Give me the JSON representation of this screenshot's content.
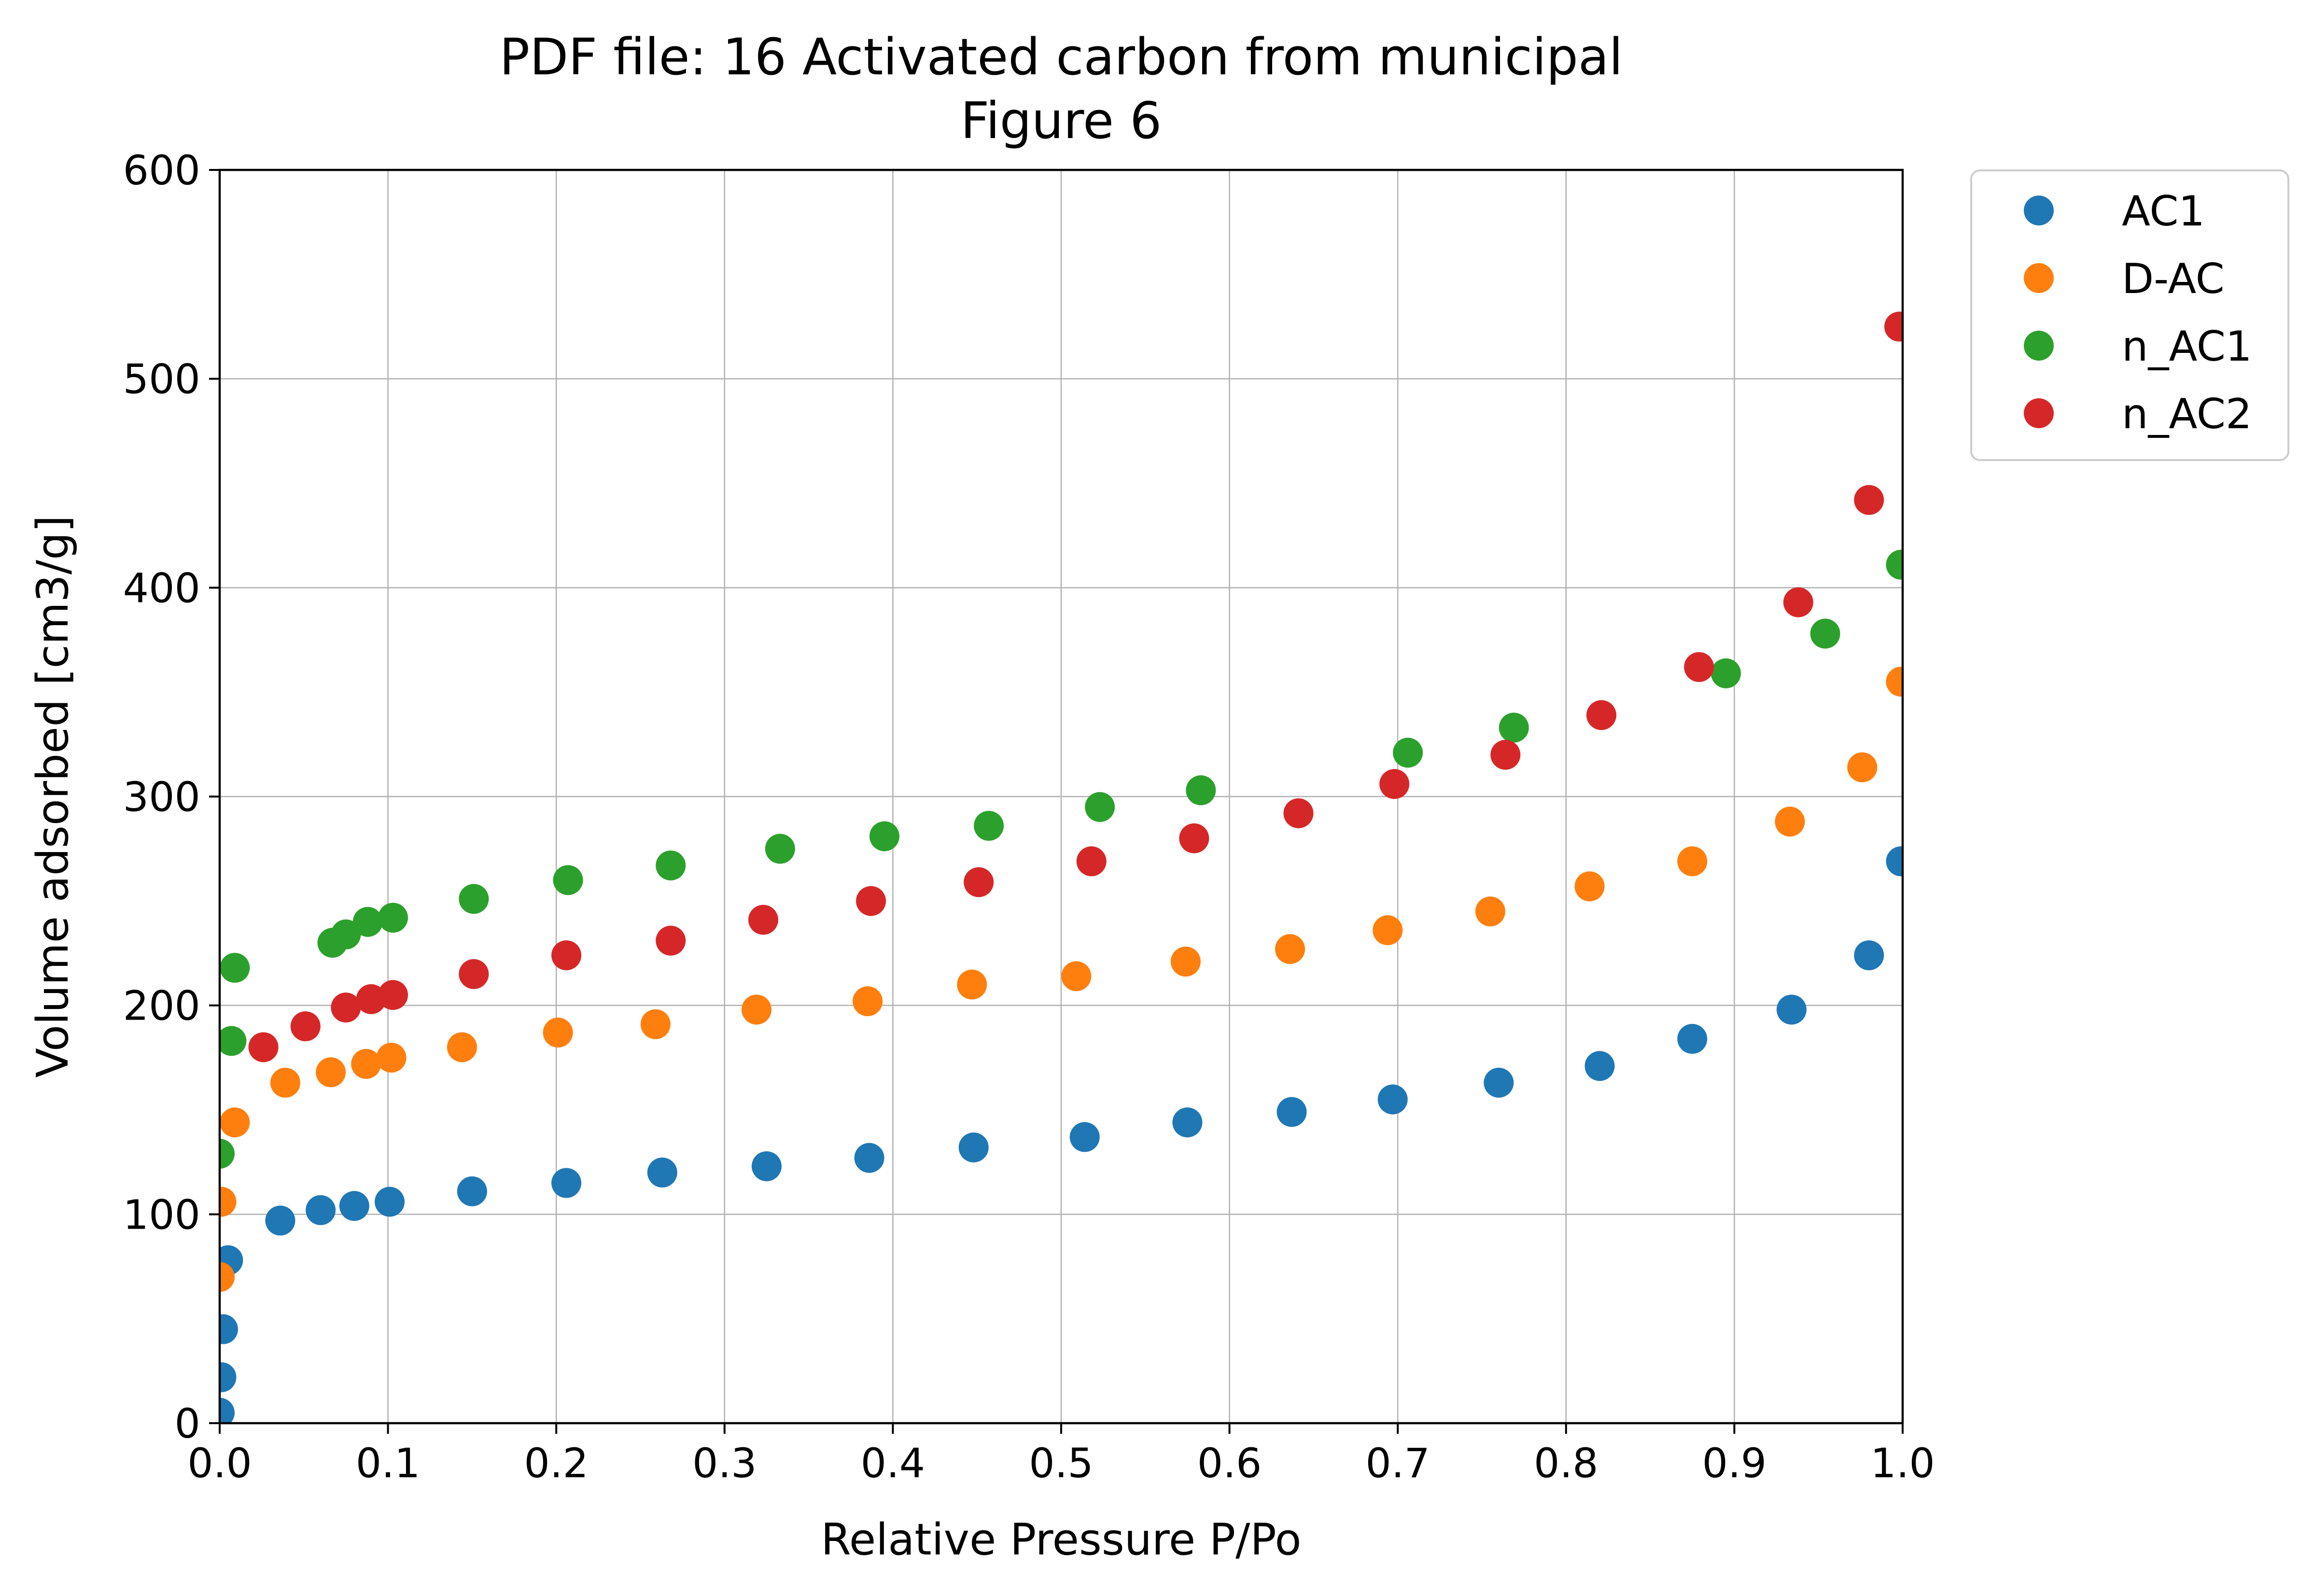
{
  "chart_data": {
    "type": "scatter",
    "title": [
      "PDF file: 16 Activated carbon from municipal",
      "Figure 6"
    ],
    "xlabel": "Relative Pressure P/Po",
    "ylabel": "Volume adsorbed [cm3/g]",
    "xlim": [
      0.0,
      1.0
    ],
    "ylim": [
      0,
      600
    ],
    "xticks": [
      "0.0",
      "0.1",
      "0.2",
      "0.3",
      "0.4",
      "0.5",
      "0.6",
      "0.7",
      "0.8",
      "0.9",
      "1.0"
    ],
    "yticks": [
      "0",
      "100",
      "200",
      "300",
      "400",
      "500",
      "600"
    ],
    "grid": true,
    "legend_position": "outside-top-right",
    "series": [
      {
        "name": "AC1",
        "color": "#1f77b4",
        "points": [
          [
            0.0,
            5
          ],
          [
            0.001,
            22
          ],
          [
            0.002,
            45
          ],
          [
            0.005,
            78
          ],
          [
            0.036,
            97
          ],
          [
            0.06,
            102
          ],
          [
            0.08,
            104
          ],
          [
            0.101,
            106
          ],
          [
            0.15,
            111
          ],
          [
            0.206,
            115
          ],
          [
            0.263,
            120
          ],
          [
            0.325,
            123
          ],
          [
            0.386,
            127
          ],
          [
            0.448,
            132
          ],
          [
            0.514,
            137
          ],
          [
            0.575,
            144
          ],
          [
            0.637,
            149
          ],
          [
            0.697,
            155
          ],
          [
            0.76,
            163
          ],
          [
            0.82,
            171
          ],
          [
            0.875,
            184
          ],
          [
            0.934,
            198
          ],
          [
            0.98,
            224
          ],
          [
            0.999,
            269
          ]
        ]
      },
      {
        "name": "D-AC",
        "color": "#ff7f0e",
        "points": [
          [
            0.0,
            70
          ],
          [
            0.001,
            106
          ],
          [
            0.009,
            144
          ],
          [
            0.039,
            163
          ],
          [
            0.066,
            168
          ],
          [
            0.087,
            172
          ],
          [
            0.102,
            175
          ],
          [
            0.144,
            180
          ],
          [
            0.201,
            187
          ],
          [
            0.259,
            191
          ],
          [
            0.319,
            198
          ],
          [
            0.385,
            202
          ],
          [
            0.447,
            210
          ],
          [
            0.509,
            214
          ],
          [
            0.574,
            221
          ],
          [
            0.636,
            227
          ],
          [
            0.694,
            236
          ],
          [
            0.755,
            245
          ],
          [
            0.814,
            257
          ],
          [
            0.875,
            269
          ],
          [
            0.933,
            288
          ],
          [
            0.976,
            314
          ],
          [
            0.999,
            355
          ]
        ]
      },
      {
        "name": "n_AC1",
        "color": "#2ca02c",
        "points": [
          [
            0.0,
            129
          ],
          [
            0.007,
            183
          ],
          [
            0.009,
            218
          ],
          [
            0.067,
            230
          ],
          [
            0.075,
            234
          ],
          [
            0.088,
            240
          ],
          [
            0.103,
            242
          ],
          [
            0.151,
            251
          ],
          [
            0.207,
            260
          ],
          [
            0.268,
            267
          ],
          [
            0.333,
            275
          ],
          [
            0.395,
            281
          ],
          [
            0.457,
            286
          ],
          [
            0.523,
            295
          ],
          [
            0.583,
            303
          ],
          [
            0.706,
            321
          ],
          [
            0.769,
            333
          ],
          [
            0.895,
            359
          ],
          [
            0.954,
            378
          ],
          [
            0.999,
            411
          ]
        ]
      },
      {
        "name": "n_AC2",
        "color": "#d62728",
        "points": [
          [
            0.026,
            180
          ],
          [
            0.051,
            190
          ],
          [
            0.075,
            199
          ],
          [
            0.09,
            203
          ],
          [
            0.103,
            205
          ],
          [
            0.151,
            215
          ],
          [
            0.206,
            224
          ],
          [
            0.268,
            231
          ],
          [
            0.323,
            241
          ],
          [
            0.387,
            250
          ],
          [
            0.451,
            259
          ],
          [
            0.518,
            269
          ],
          [
            0.579,
            280
          ],
          [
            0.641,
            292
          ],
          [
            0.698,
            306
          ],
          [
            0.764,
            320
          ],
          [
            0.821,
            339
          ],
          [
            0.879,
            362
          ],
          [
            0.938,
            393
          ],
          [
            0.98,
            442
          ],
          [
            0.998,
            525
          ]
        ]
      }
    ]
  }
}
